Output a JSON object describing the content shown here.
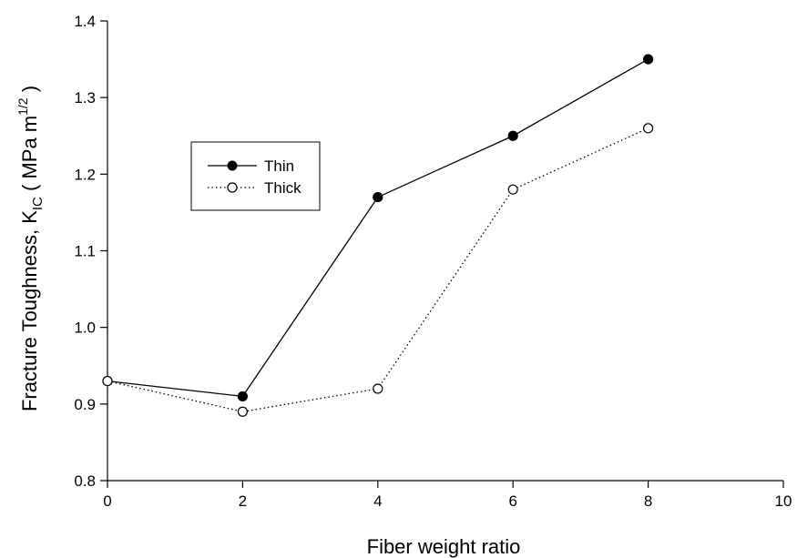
{
  "chart_data": {
    "type": "line",
    "x": [
      0,
      2,
      4,
      6,
      8
    ],
    "series": [
      {
        "name": "Thin",
        "values": [
          0.93,
          0.91,
          1.17,
          1.25,
          1.35
        ],
        "line_style": "solid",
        "marker": "filled-circle",
        "color": "#000000"
      },
      {
        "name": "Thick",
        "values": [
          0.93,
          0.89,
          0.92,
          1.18,
          1.26
        ],
        "line_style": "dotted",
        "marker": "open-circle",
        "color": "#000000"
      }
    ],
    "xlabel": "Fiber weight ratio",
    "ylabel": {
      "main": "Fracture Toughness, K",
      "sub": "IC",
      "open": " ( MPa m",
      "sup": "1/2",
      "close": " )"
    },
    "xlim": [
      0,
      10
    ],
    "ylim": [
      0.8,
      1.4
    ],
    "xticks": [
      "0",
      "2",
      "4",
      "6",
      "8",
      "10"
    ],
    "yticks": [
      "0.8",
      "0.9",
      "1.0",
      "1.1",
      "1.2",
      "1.3",
      "1.4"
    ],
    "grid": false,
    "legend_position": "upper-left"
  }
}
